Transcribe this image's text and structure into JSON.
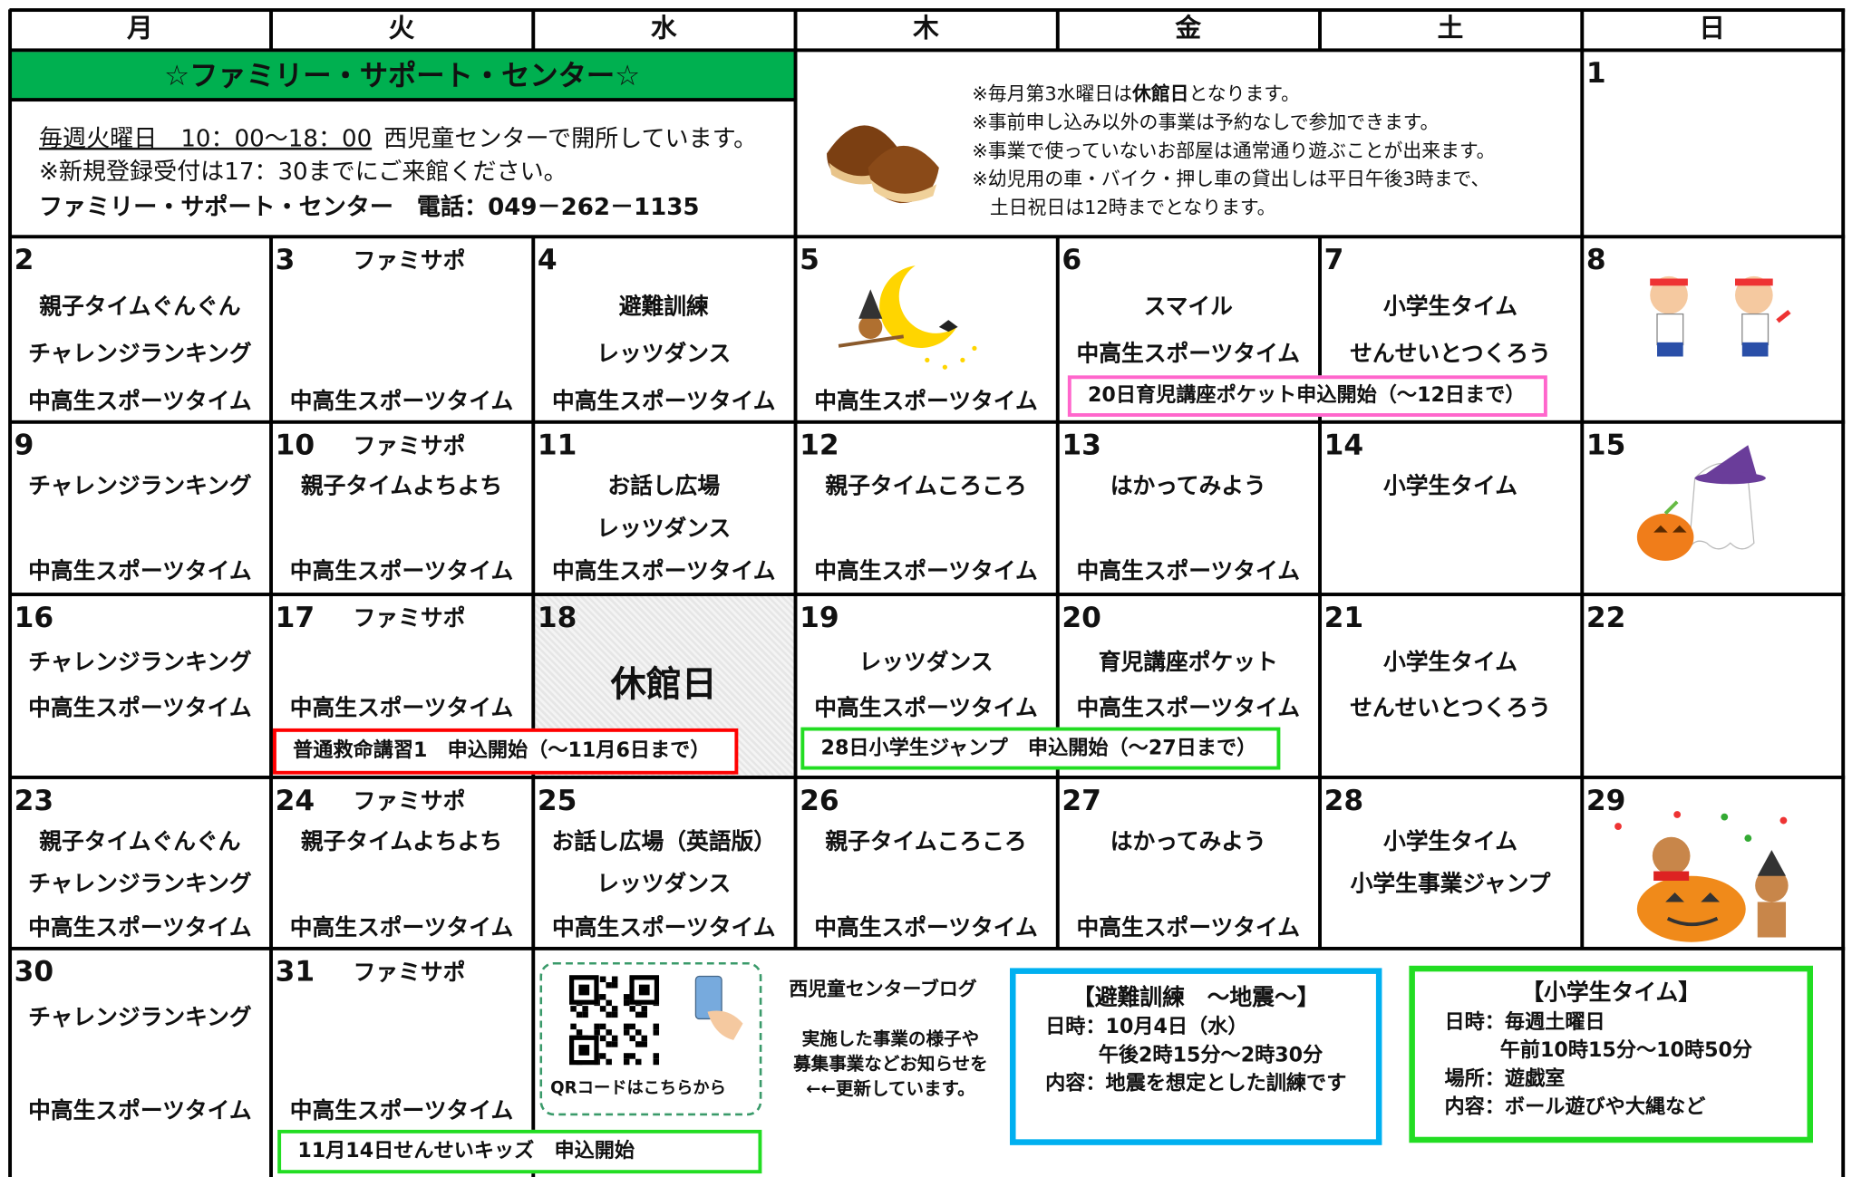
{
  "weekdays": [
    "月",
    "火",
    "水",
    "木",
    "金",
    "土",
    "日"
  ],
  "info": {
    "title": "☆ファミリー・サポート・センター☆",
    "hours": "毎週火曜日　10：00～18：00",
    "hours_rest": "西児童センターで開所しています。",
    "registration": "※新規登録受付は17：30までにご来館ください。",
    "contact": "ファミリー・サポート・センター　電話：049－262－1135"
  },
  "notice": {
    "closed_pre": "※毎月第3水曜日は",
    "closed_word": "休館日",
    "closed_post": "となります。",
    "lines": [
      "※事前申し込み以外の事業は予約なしで参加できます。",
      "※事業で使っていないお部屋は通常通り遊ぶことが出来ます。",
      "※幼児用の車・バイク・押し車の貸出しは平日午後3時まで、",
      "土日祝日は12時までとなります。"
    ]
  },
  "days": [
    {
      "date": "1"
    },
    {
      "date": "2",
      "events": [
        "親子タイムぐんぐん",
        "チャレンジランキング",
        "中高生スポーツタイム"
      ]
    },
    {
      "date": "3",
      "tag": "ファミサポ",
      "events": [
        "中高生スポーツタイム"
      ]
    },
    {
      "date": "4",
      "events": [
        "避難訓練",
        "レッツダンス",
        "中高生スポーツタイム"
      ]
    },
    {
      "date": "5",
      "events": [
        "中高生スポーツタイム"
      ]
    },
    {
      "date": "6",
      "events": [
        "スマイル",
        "中高生スポーツタイム"
      ]
    },
    {
      "date": "7",
      "events": [
        "小学生タイム",
        "せんせいとつくろう"
      ]
    },
    {
      "date": "8"
    },
    {
      "date": "9",
      "events": [
        "チャレンジランキング",
        "中高生スポーツタイム"
      ]
    },
    {
      "date": "10",
      "tag": "ファミサポ",
      "events": [
        "親子タイムよちよち",
        "中高生スポーツタイム"
      ]
    },
    {
      "date": "11",
      "events": [
        "お話し広場",
        "レッツダンス",
        "中高生スポーツタイム"
      ]
    },
    {
      "date": "12",
      "events": [
        "親子タイムころころ",
        "中高生スポーツタイム"
      ]
    },
    {
      "date": "13",
      "events": [
        "はかってみよう",
        "中高生スポーツタイム"
      ]
    },
    {
      "date": "14",
      "events": [
        "小学生タイム"
      ]
    },
    {
      "date": "15"
    },
    {
      "date": "16",
      "events": [
        "チャレンジランキング",
        "中高生スポーツタイム"
      ]
    },
    {
      "date": "17",
      "tag": "ファミサポ",
      "events": [
        "中高生スポーツタイム"
      ]
    },
    {
      "date": "18",
      "closed": "休館日"
    },
    {
      "date": "19",
      "events": [
        "レッツダンス",
        "中高生スポーツタイム"
      ]
    },
    {
      "date": "20",
      "events": [
        "育児講座ポケット",
        "中高生スポーツタイム"
      ]
    },
    {
      "date": "21",
      "events": [
        "小学生タイム",
        "せんせいとつくろう"
      ]
    },
    {
      "date": "22"
    },
    {
      "date": "23",
      "events": [
        "親子タイムぐんぐん",
        "チャレンジランキング",
        "中高生スポーツタイム"
      ]
    },
    {
      "date": "24",
      "tag": "ファミサポ",
      "events": [
        "親子タイムよちよち",
        "中高生スポーツタイム"
      ]
    },
    {
      "date": "25",
      "events": [
        "お話し広場（英語版）",
        "レッツダンス",
        "中高生スポーツタイム"
      ]
    },
    {
      "date": "26",
      "events": [
        "親子タイムころころ",
        "中高生スポーツタイム"
      ]
    },
    {
      "date": "27",
      "events": [
        "はかってみよう",
        "中高生スポーツタイム"
      ]
    },
    {
      "date": "28",
      "events": [
        "小学生タイム",
        "小学生事業ジャンプ"
      ]
    },
    {
      "date": "29"
    },
    {
      "date": "30",
      "events": [
        "チャレンジランキング",
        "中高生スポーツタイム"
      ]
    },
    {
      "date": "31",
      "tag": "ファミサポ",
      "events": [
        "中高生スポーツタイム"
      ]
    }
  ],
  "banners": [
    "20日育児講座ポケット申込開始（～12日まで）",
    "普通救命講習1　申込開始（～11月6日まで）",
    "28日小学生ジャンプ　申込開始（～27日まで）",
    "11月14日せんせいキッズ　申込開始"
  ],
  "qr_caption": "QRコードはこちらから",
  "blog": {
    "title": "西児童センターブログ",
    "lines": [
      "実施した事業の様子や",
      "募集事業などお知らせを",
      "←←更新しています。"
    ]
  },
  "boxes": [
    {
      "title": "【避難訓練　～地震～】",
      "lines": [
        "日時：10月4日（水）",
        "午後2時15分～2時30分",
        "内容：地震を想定とした訓練です"
      ]
    },
    {
      "title": "【小学生タイム】",
      "lines": [
        "日時：毎週土曜日",
        "午前10時15分～10時50分",
        "場所：遊戯室",
        "内容：ボール遊びや大縄など"
      ]
    }
  ]
}
